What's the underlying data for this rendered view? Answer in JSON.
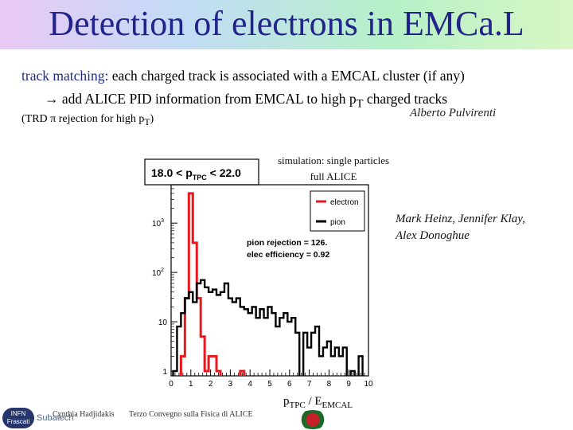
{
  "title": "Detection of electrons in EMCa.L",
  "bullet1": {
    "keyword": "track matching:",
    "rest": " each charged track is associated with a EMCAL cluster (if any)"
  },
  "bullet2": {
    "arrow": "→",
    "text": " add ALICE PID information from EMCAL to high p",
    "sub": "T",
    "tail": " charged tracks"
  },
  "bullet3": {
    "text": "(TRD π rejection for high p",
    "sub": "T",
    "tail": ")"
  },
  "author_top": "Alberto Pulvirenti",
  "author_right_line1": "Mark Heinz, Jennifer Klay,",
  "author_right_line2": "Alex Donoghue",
  "sim_note_line1": "simulation: single particles",
  "sim_note_line2": "full ALICE",
  "footer": {
    "presenter": "Cynthia Hadjidakis",
    "conference": "Terzo Convegno sulla Fisica di ALICE",
    "logo1_line1": "INFN",
    "logo1_line2": "Frascati",
    "logo2": "Subatech"
  },
  "chart_data": {
    "type": "histogram",
    "title": "18.0 < p_TPC < 22.0",
    "title_parts": {
      "a": "18.0 < p",
      "sub": "TPC",
      "b": " < 22.0"
    },
    "xlabel": {
      "a": "p",
      "sub1": "TPC",
      "b": " / E",
      "sub2": "EMCAL"
    },
    "xlim": [
      0,
      10
    ],
    "log_y": true,
    "x_ticks": [
      "0",
      "1",
      "2",
      "3",
      "4",
      "5",
      "6",
      "7",
      "8",
      "9",
      "10"
    ],
    "y_ticks": [
      {
        "label": "1",
        "exp": "",
        "value": 1
      },
      {
        "label": "10",
        "exp": "",
        "value": 10
      },
      {
        "label": "10",
        "exp": "2",
        "value": 100
      },
      {
        "label": "10",
        "exp": "3",
        "value": 1000
      }
    ],
    "legend": {
      "position": "top-right",
      "entries": [
        "electron",
        "pion"
      ]
    },
    "stats": [
      "pion rejection = 126.",
      "elec efficiency = 0.92"
    ],
    "series": [
      {
        "name": "electron",
        "color": "#e8181c",
        "bin_width": 0.2,
        "x": [
          0.6,
          0.8,
          1.0,
          1.2,
          1.4,
          1.6,
          1.8,
          2.0,
          2.2,
          2.4,
          3.6
        ],
        "values": [
          2,
          30,
          4000,
          400,
          30,
          5,
          1,
          2,
          2,
          1,
          1
        ]
      },
      {
        "name": "pion",
        "color": "#000000",
        "bin_width": 0.2,
        "x": [
          0.2,
          0.4,
          0.6,
          0.8,
          1.0,
          1.2,
          1.4,
          1.6,
          1.8,
          2.0,
          2.2,
          2.4,
          2.6,
          2.8,
          3.0,
          3.2,
          3.4,
          3.6,
          3.8,
          4.0,
          4.2,
          4.4,
          4.6,
          4.8,
          5.0,
          5.2,
          5.4,
          5.6,
          5.8,
          6.0,
          6.2,
          6.4,
          6.8,
          7.0,
          7.2,
          7.4,
          7.6,
          7.8,
          8.0,
          8.2,
          8.4,
          8.6,
          8.8,
          9.2,
          9.6
        ],
        "values": [
          1,
          8,
          15,
          30,
          40,
          25,
          60,
          70,
          50,
          40,
          45,
          35,
          40,
          60,
          30,
          25,
          30,
          20,
          18,
          15,
          20,
          12,
          18,
          12,
          20,
          15,
          8,
          12,
          15,
          10,
          12,
          6,
          6,
          3,
          6,
          8,
          2,
          3,
          4,
          2,
          3,
          2,
          3,
          1,
          2
        ]
      }
    ]
  }
}
